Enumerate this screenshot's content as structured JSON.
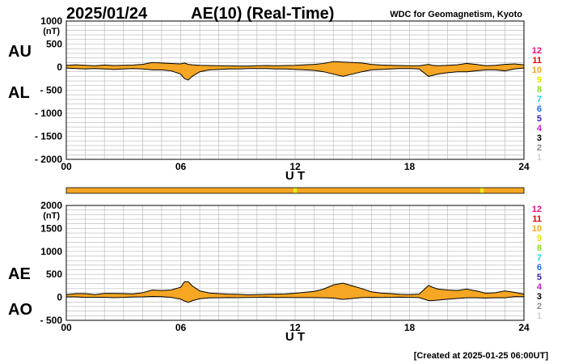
{
  "header": {
    "date": "2025/01/24",
    "title": "AE(10) (Real-Time)",
    "source": "WDC for Geomagnetism, Kyoto"
  },
  "footer": {
    "created": "[Created at 2025-01-25 06:00UT]"
  },
  "colors": {
    "fill": "#f5a623",
    "line": "#000000",
    "grid": "#b4b4b4",
    "bar": "#f5a623",
    "bar_mark": "#e6f016"
  },
  "legend": {
    "levels": [
      {
        "label": "12",
        "color": "#e8117e"
      },
      {
        "label": "11",
        "color": "#e60000"
      },
      {
        "label": "10",
        "color": "#f5a623"
      },
      {
        "label": "9",
        "color": "#e6e600"
      },
      {
        "label": "8",
        "color": "#8ee020"
      },
      {
        "label": "7",
        "color": "#19d6e6"
      },
      {
        "label": "6",
        "color": "#1e6ee6"
      },
      {
        "label": "5",
        "color": "#3a1eb4"
      },
      {
        "label": "4",
        "color": "#c81ed2"
      },
      {
        "label": "3",
        "color": "#000000"
      },
      {
        "label": "2",
        "color": "#8c8c8c"
      },
      {
        "label": "1",
        "color": "#d2d2d2"
      }
    ]
  },
  "station_bar": {
    "base_level": "10",
    "marks_ut": [
      12.0,
      21.8
    ]
  },
  "chart_data": [
    {
      "type": "area",
      "name": "AU/AL",
      "upper_label": "AU",
      "lower_label": "AL",
      "unit": "(nT)",
      "xlabel": "U T",
      "xlim": [
        0,
        24
      ],
      "ylim": [
        -2000,
        1000
      ],
      "xticks": [
        "00",
        "06",
        "12",
        "18",
        "24"
      ],
      "yticks": [
        "1000",
        "500",
        "0",
        "- 500",
        "- 1000",
        "- 1500",
        "- 2000"
      ],
      "x": [
        0,
        0.5,
        1,
        1.5,
        2,
        2.5,
        3,
        3.5,
        4,
        4.5,
        5,
        5.5,
        6,
        6.2,
        6.4,
        6.6,
        7,
        7.5,
        8,
        8.5,
        9,
        9.5,
        10,
        10.5,
        11,
        11.5,
        12,
        12.5,
        13,
        13.5,
        14,
        14.5,
        15,
        15.5,
        16,
        16.5,
        17,
        17.5,
        18,
        18.5,
        19,
        19.2,
        19.5,
        20,
        20.5,
        21,
        21.5,
        22,
        22.5,
        23,
        23.5,
        24
      ],
      "series": [
        {
          "name": "AU",
          "values": [
            40,
            50,
            40,
            30,
            45,
            35,
            40,
            45,
            60,
            100,
            90,
            80,
            70,
            90,
            60,
            50,
            40,
            35,
            30,
            30,
            25,
            25,
            30,
            35,
            30,
            35,
            40,
            50,
            60,
            80,
            120,
            110,
            100,
            90,
            60,
            45,
            40,
            35,
            30,
            30,
            60,
            40,
            30,
            40,
            50,
            80,
            60,
            30,
            40,
            60,
            70,
            50
          ]
        },
        {
          "name": "AL",
          "values": [
            -20,
            -30,
            -40,
            -30,
            -40,
            -50,
            -40,
            -30,
            -40,
            -60,
            -60,
            -80,
            -150,
            -250,
            -280,
            -200,
            -100,
            -60,
            -50,
            -40,
            -40,
            -30,
            -30,
            -30,
            -40,
            -40,
            -50,
            -60,
            -70,
            -100,
            -150,
            -200,
            -150,
            -100,
            -60,
            -50,
            -40,
            -30,
            -30,
            -40,
            -200,
            -180,
            -150,
            -120,
            -100,
            -100,
            -80,
            -60,
            -60,
            -80,
            -40,
            -20
          ]
        }
      ]
    },
    {
      "type": "area",
      "name": "AE/AO",
      "upper_label": "AE",
      "lower_label": "AO",
      "unit": "(nT)",
      "xlabel": "U T",
      "xlim": [
        0,
        24
      ],
      "ylim": [
        -500,
        2000
      ],
      "xticks": [
        "00",
        "06",
        "12",
        "18",
        "24"
      ],
      "yticks": [
        "2000",
        "1500",
        "1000",
        "500",
        "0",
        "- 500"
      ],
      "x": [
        0,
        0.5,
        1,
        1.5,
        2,
        2.5,
        3,
        3.5,
        4,
        4.5,
        5,
        5.5,
        6,
        6.2,
        6.4,
        6.6,
        7,
        7.5,
        8,
        8.5,
        9,
        9.5,
        10,
        10.5,
        11,
        11.5,
        12,
        12.5,
        13,
        13.5,
        14,
        14.5,
        15,
        15.5,
        16,
        16.5,
        17,
        17.5,
        18,
        18.5,
        19,
        19.2,
        19.5,
        20,
        20.5,
        21,
        21.5,
        22,
        22.5,
        23,
        23.5,
        24
      ],
      "series": [
        {
          "name": "AE",
          "values": [
            60,
            80,
            80,
            60,
            85,
            85,
            80,
            75,
            100,
            160,
            150,
            160,
            220,
            340,
            340,
            250,
            140,
            95,
            80,
            70,
            65,
            55,
            60,
            65,
            70,
            75,
            90,
            110,
            130,
            180,
            270,
            310,
            250,
            190,
            120,
            95,
            80,
            65,
            60,
            70,
            260,
            220,
            180,
            160,
            150,
            180,
            140,
            90,
            100,
            140,
            110,
            70
          ]
        },
        {
          "name": "AO",
          "values": [
            10,
            10,
            0,
            0,
            2,
            -8,
            0,
            8,
            10,
            20,
            15,
            0,
            -40,
            -80,
            -110,
            -75,
            -30,
            -12,
            -10,
            -5,
            -8,
            -3,
            0,
            3,
            -5,
            -3,
            -5,
            -5,
            -5,
            -10,
            -15,
            -45,
            -25,
            -5,
            0,
            -3,
            0,
            3,
            0,
            -5,
            -70,
            -70,
            -60,
            -40,
            -25,
            -10,
            -10,
            -15,
            -10,
            -10,
            15,
            15
          ]
        }
      ]
    }
  ]
}
